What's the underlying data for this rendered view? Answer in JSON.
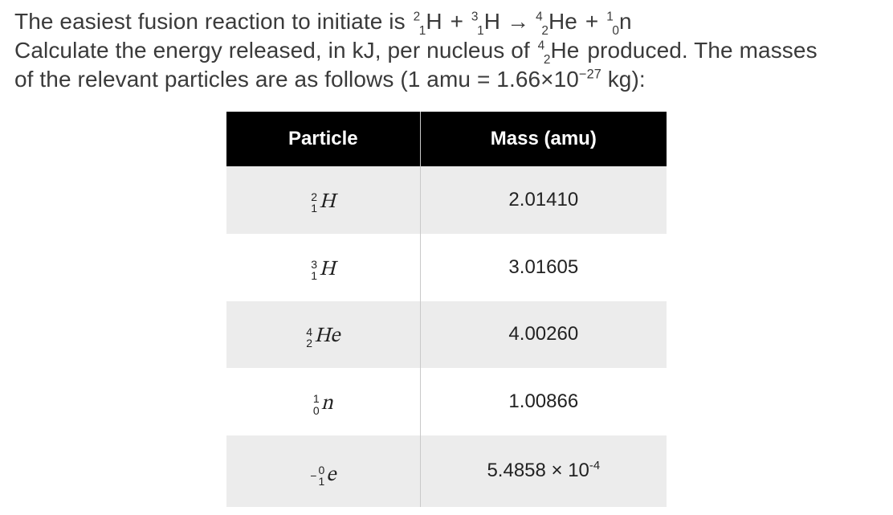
{
  "question": {
    "line1_pre": "The easiest fusion reaction to initiate is ",
    "reactant1": {
      "sup": "2",
      "sub": "1",
      "sym": "H"
    },
    "plus1": " + ",
    "reactant2": {
      "sup": "3",
      "sub": "1",
      "sym": "H"
    },
    "arrow": "→",
    "product1": {
      "sup": "4",
      "sub": "2",
      "sym": "He"
    },
    "plus2": " + ",
    "product2": {
      "sup": "1",
      "sub": "0",
      "sym": "n"
    },
    "line2_pre": "Calculate the energy released, in kJ, per nucleus of ",
    "line2_nuclide": {
      "sup": "4",
      "sub": "2",
      "sym": "He"
    },
    "line2_post": " produced. The masses",
    "line3_pre": "of the relevant particles are as follows (1 amu = 1.66×10",
    "line3_exp": "−27",
    "line3_post": " kg):"
  },
  "table": {
    "header": {
      "col1": "Particle",
      "col2": "Mass (amu)"
    },
    "colors": {
      "header_bg": "#000000",
      "header_fg": "#ffffff",
      "row_odd_bg": "#ececec",
      "row_even_bg": "#ffffff",
      "border": "#c9c9c9"
    },
    "rows": [
      {
        "particle": {
          "upper": "2",
          "lower": "1",
          "sym": "H",
          "neg": false
        },
        "mass": "2.01410"
      },
      {
        "particle": {
          "upper": "3",
          "lower": "1",
          "sym": "H",
          "neg": false
        },
        "mass": "3.01605"
      },
      {
        "particle": {
          "upper": "4",
          "lower": "2",
          "sym": "He",
          "neg": false
        },
        "mass": "4.00260"
      },
      {
        "particle": {
          "upper": "1",
          "lower": "0",
          "sym": "n",
          "neg": false
        },
        "mass": "1.00866"
      },
      {
        "particle": {
          "upper": "0",
          "lower": "1",
          "sym": "e",
          "neg": true
        },
        "mass_html": "5.4858 × 10<sup>-4</sup>",
        "mass": "5.4858 × 10-4"
      }
    ]
  }
}
